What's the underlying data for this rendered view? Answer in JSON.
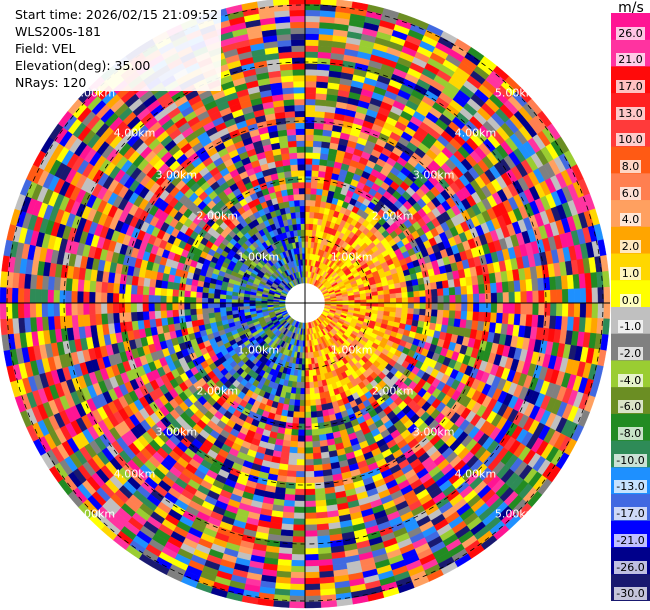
{
  "info": {
    "start_time": "Start time: 2026/02/15 21:09:52",
    "instrument": "WLS200s-181",
    "field": "Field: VEL",
    "elevation": "Elevation(deg): 35.00",
    "nrays": "NRays: 120"
  },
  "colorbar": {
    "unit": "m/s",
    "ticks": [
      "26.0",
      "21.0",
      "17.0",
      "13.0",
      "10.0",
      "8.0",
      "6.0",
      "4.0",
      "2.0",
      "1.0",
      "0.0",
      "-1.0",
      "-2.0",
      "-4.0",
      "-6.0",
      "-8.0",
      "-10.0",
      "-13.0",
      "-17.0",
      "-21.0",
      "-26.0",
      "-30.0"
    ],
    "colors": [
      "#ff1493",
      "#ff33a0",
      "#ff0a0a",
      "#ff2020",
      "#ff3a3a",
      "#ff5a14",
      "#ff7f50",
      "#ffa060",
      "#ffa500",
      "#ffd700",
      "#ffff00",
      "#c0c0c0",
      "#808080",
      "#9acd32",
      "#6b8e23",
      "#228b22",
      "#2e8b57",
      "#1e90ff",
      "#4169e1",
      "#0000ff",
      "#00008b",
      "#191970"
    ]
  },
  "range_rings": {
    "labels": [
      "1.00km",
      "2.00km",
      "3.00km",
      "4.00km",
      "5.00km"
    ]
  }
}
